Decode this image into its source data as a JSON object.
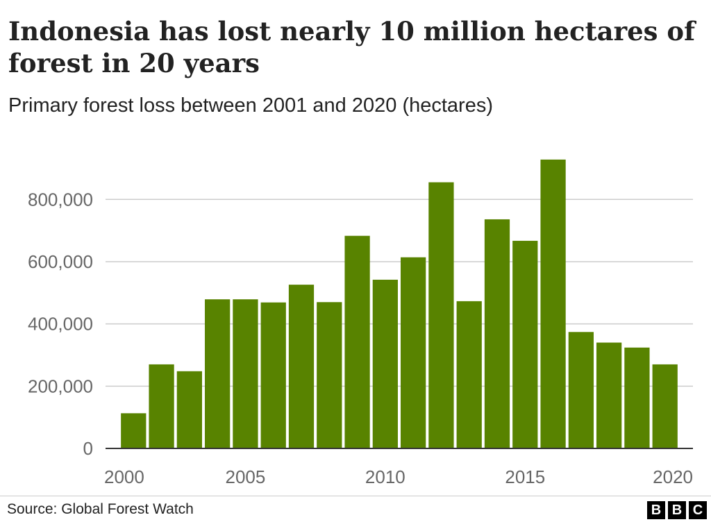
{
  "chart_data": {
    "type": "bar",
    "title": "Indonesia has lost nearly 10 million hectares of forest in 20 years",
    "subtitle": "Primary forest loss between 2001 and 2020 (hectares)",
    "x": [
      2001,
      2002,
      2003,
      2004,
      2005,
      2006,
      2007,
      2008,
      2009,
      2010,
      2011,
      2012,
      2013,
      2014,
      2015,
      2016,
      2017,
      2018,
      2019,
      2020
    ],
    "values": [
      113000,
      270000,
      248000,
      479000,
      479000,
      469000,
      526000,
      470000,
      683000,
      542000,
      614000,
      855000,
      473000,
      736000,
      667000,
      928000,
      374000,
      340000,
      324000,
      270000
    ],
    "xlim": [
      2000,
      2021
    ],
    "ylim": [
      0,
      950000
    ],
    "x_ticks": [
      2000,
      2005,
      2010,
      2015,
      2020
    ],
    "x_tick_labels": [
      "2000",
      "2005",
      "2010",
      "2015",
      "2020"
    ],
    "y_ticks": [
      0,
      200000,
      400000,
      600000,
      800000
    ],
    "y_tick_labels": [
      "0",
      "200,000",
      "400,000",
      "600,000",
      "800,000"
    ],
    "bar_color": "#588300",
    "grid": true,
    "legend": "none"
  },
  "footer": {
    "source": "Source: Global Forest Watch",
    "logo_letters": [
      "B",
      "B",
      "C"
    ]
  }
}
